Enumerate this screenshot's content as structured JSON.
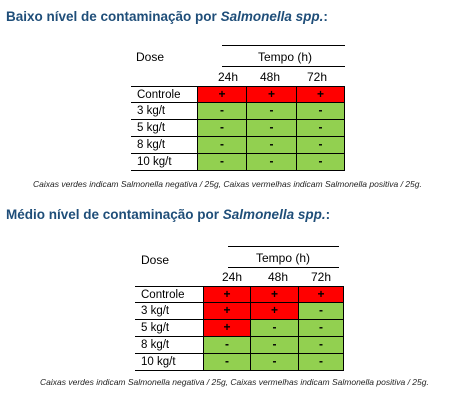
{
  "sections": [
    {
      "title_prefix": "Baixo nível de contaminação por ",
      "title_organism": "Salmonella spp.",
      "title_suffix": ":",
      "dose_label": "Dose",
      "time_label": "Tempo (h)",
      "times": [
        "24h",
        "48h",
        "72h"
      ],
      "rows": [
        {
          "label": "Controle",
          "values": [
            "+",
            "+",
            "+"
          ]
        },
        {
          "label": "3 kg/t",
          "values": [
            "-",
            "-",
            "-"
          ]
        },
        {
          "label": "5 kg/t",
          "values": [
            "-",
            "-",
            "-"
          ]
        },
        {
          "label": "8 kg/t",
          "values": [
            "-",
            "-",
            "-"
          ]
        },
        {
          "label": "10 kg/t",
          "values": [
            "-",
            "-",
            "-"
          ]
        }
      ],
      "caption": "Caixas verdes indicam Salmonella negativa / 25g, Caixas vermelhas indicam Salmonella positiva / 25g."
    },
    {
      "title_prefix": "Médio nível de contaminação por ",
      "title_organism": "Salmonella spp.",
      "title_suffix": ":",
      "dose_label": "Dose",
      "time_label": "Tempo (h)",
      "times": [
        "24h",
        "48h",
        "72h"
      ],
      "rows": [
        {
          "label": "Controle",
          "values": [
            "+",
            "+",
            "+"
          ]
        },
        {
          "label": "3 kg/t",
          "values": [
            "+",
            "+",
            "-"
          ]
        },
        {
          "label": "5 kg/t",
          "values": [
            "+",
            "-",
            "-"
          ]
        },
        {
          "label": "8 kg/t",
          "values": [
            "-",
            "-",
            "-"
          ]
        },
        {
          "label": "10 kg/t",
          "values": [
            "-",
            "-",
            "-"
          ]
        }
      ],
      "caption": "Caixas verdes indicam Salmonella negativa / 25g, Caixas vermelhas indicam Salmonella positiva / 25g."
    }
  ],
  "colors": {
    "positive": "#ff0000",
    "negative": "#92d050",
    "title": "#1f4e79"
  }
}
